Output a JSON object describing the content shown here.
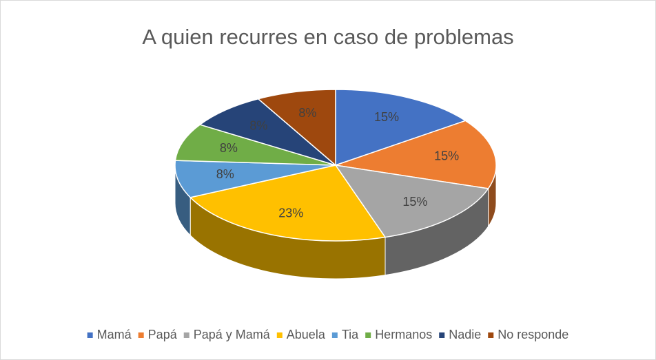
{
  "chart_data": {
    "type": "pie",
    "title": "A quien recurres en caso de problemas",
    "categories": [
      "Mamá",
      "Papá",
      "Papá y Mamá",
      "Abuela",
      "Tia",
      "Hermanos",
      "Nadie",
      "No responde"
    ],
    "values": [
      15,
      15,
      15,
      23,
      8,
      8,
      8,
      8
    ],
    "value_labels": [
      "15%",
      "15%",
      "15%",
      "23%",
      "8%",
      "8%",
      "8%",
      "8%"
    ],
    "colors": [
      "#4472c4",
      "#ed7d31",
      "#a5a5a5",
      "#ffc000",
      "#5b9bd5",
      "#70ad47",
      "#264478",
      "#9e480e"
    ],
    "legend": "bottom"
  }
}
